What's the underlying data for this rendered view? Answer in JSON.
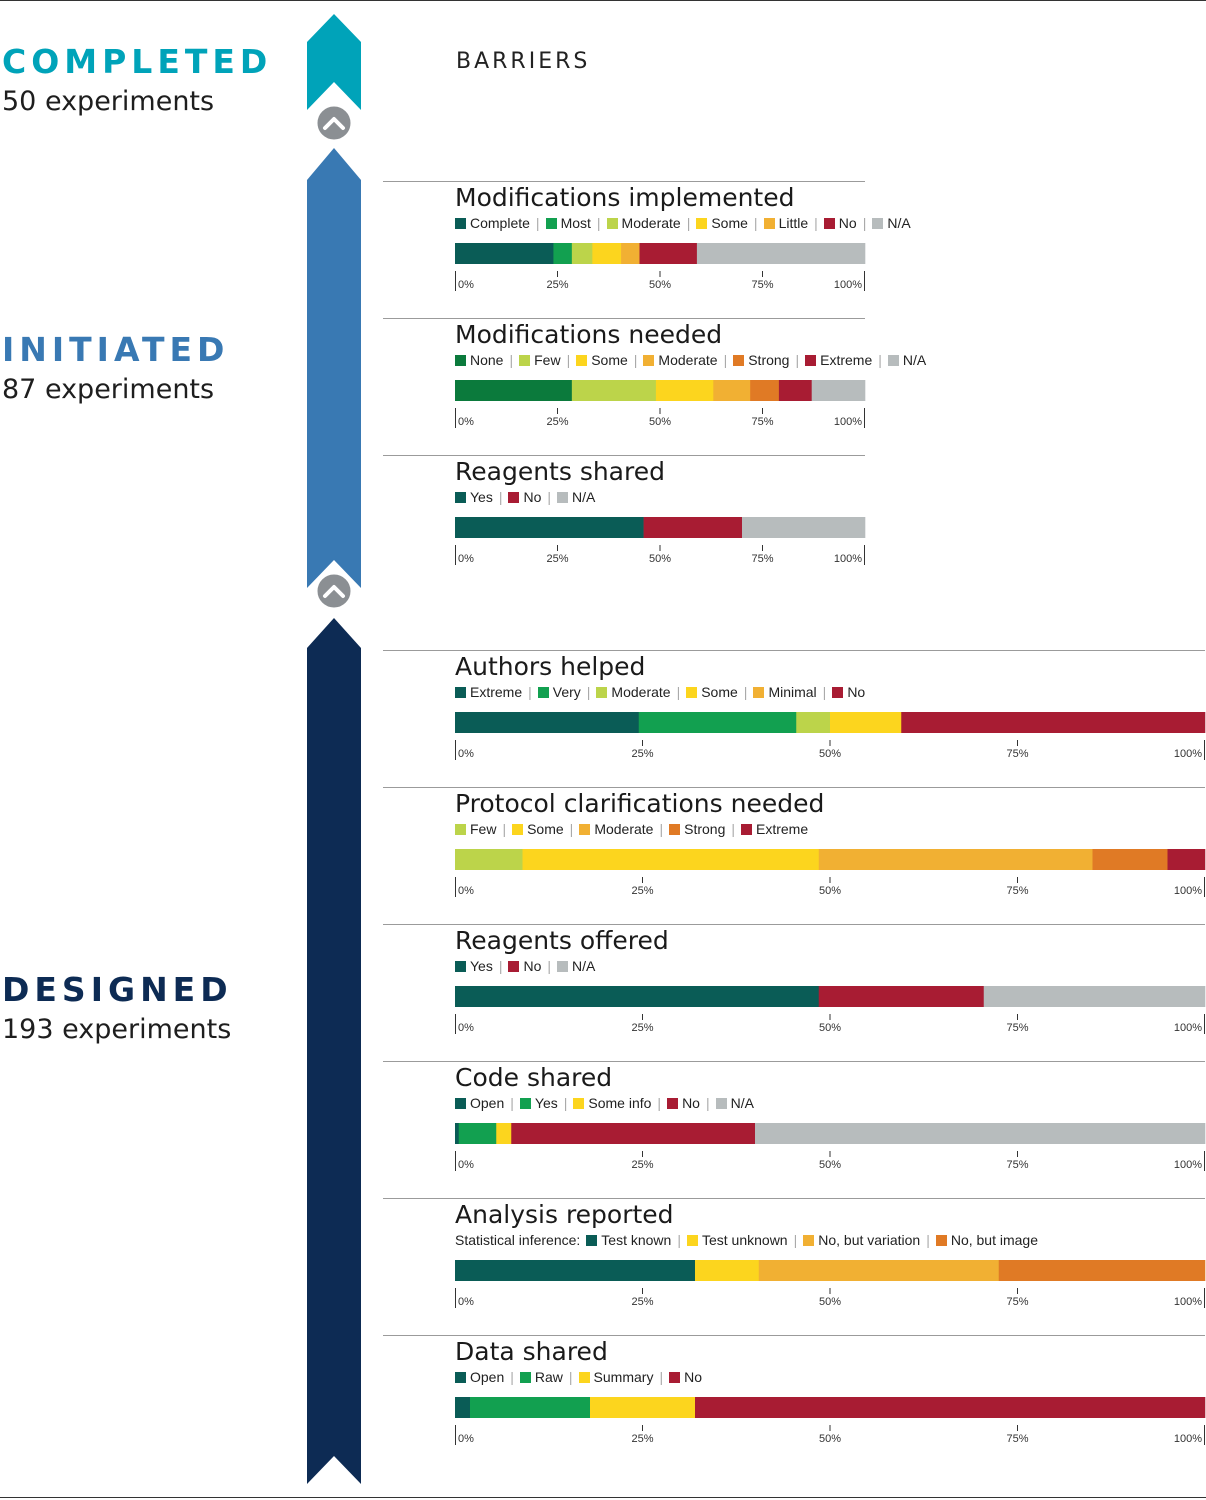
{
  "stages": [
    {
      "key": "completed",
      "title": "COMPLETED",
      "count": "50 experiments",
      "color": "#00a3b9"
    },
    {
      "key": "initiated",
      "title": "INITIATED",
      "count": "87 experiments",
      "color": "#3979b3"
    },
    {
      "key": "designed",
      "title": "DESIGNED",
      "count": "193 experiments",
      "color": "#0d2b54"
    }
  ],
  "heading": "BARRIERS",
  "connector_icon": "chevron-up-icon",
  "chart_data": [
    {
      "type": "bar",
      "stacked": true,
      "orientation": "horizontal",
      "title": "Modifications implemented",
      "stage": "completed",
      "legend_prefix": "",
      "unit": "%",
      "categories": [
        {
          "name": "Complete",
          "color": "#0a5c56",
          "value": 24
        },
        {
          "name": "Most",
          "color": "#12a050",
          "value": 4.5
        },
        {
          "name": "Moderate",
          "color": "#bcd44a",
          "value": 5
        },
        {
          "name": "Some",
          "color": "#fcd51e",
          "value": 7
        },
        {
          "name": "Little",
          "color": "#f1b033",
          "value": 4.5
        },
        {
          "name": "No",
          "color": "#a81c33",
          "value": 14
        },
        {
          "name": "N/A",
          "color": "#b7bcbd",
          "value": 41
        }
      ],
      "ticks": [
        "0%",
        "25%",
        "50%",
        "75%",
        "100%"
      ]
    },
    {
      "type": "bar",
      "stacked": true,
      "orientation": "horizontal",
      "title": "Modifications needed",
      "stage": "initiated",
      "legend_prefix": "",
      "unit": "%",
      "categories": [
        {
          "name": "None",
          "color": "#0b7a3c",
          "value": 28.5
        },
        {
          "name": "Few",
          "color": "#bcd44a",
          "value": 20.5
        },
        {
          "name": "Some",
          "color": "#fcd51e",
          "value": 14
        },
        {
          "name": "Moderate",
          "color": "#f1b033",
          "value": 9
        },
        {
          "name": "Strong",
          "color": "#e07a25",
          "value": 7
        },
        {
          "name": "Extreme",
          "color": "#a81c33",
          "value": 8
        },
        {
          "name": "N/A",
          "color": "#b7bcbd",
          "value": 13
        }
      ],
      "ticks": [
        "0%",
        "25%",
        "50%",
        "75%",
        "100%"
      ]
    },
    {
      "type": "bar",
      "stacked": true,
      "orientation": "horizontal",
      "title": "Reagents shared",
      "stage": "initiated",
      "legend_prefix": "",
      "unit": "%",
      "categories": [
        {
          "name": "Yes",
          "color": "#0a5c56",
          "value": 46
        },
        {
          "name": "No",
          "color": "#a81c33",
          "value": 24
        },
        {
          "name": "N/A",
          "color": "#b7bcbd",
          "value": 30
        }
      ],
      "ticks": [
        "0%",
        "25%",
        "50%",
        "75%",
        "100%"
      ]
    },
    {
      "type": "bar",
      "stacked": true,
      "orientation": "horizontal",
      "title": "Authors helped",
      "stage": "designed",
      "legend_prefix": "",
      "unit": "%",
      "categories": [
        {
          "name": "Extreme",
          "color": "#0a5c56",
          "value": 24.5
        },
        {
          "name": "Very",
          "color": "#12a050",
          "value": 21
        },
        {
          "name": "Moderate",
          "color": "#bcd44a",
          "value": 4.5
        },
        {
          "name": "Some",
          "color": "#fcd51e",
          "value": 9.5
        },
        {
          "name": "Minimal",
          "color": "#f1b033",
          "value": 0
        },
        {
          "name": "No",
          "color": "#a81c33",
          "value": 40.5
        }
      ],
      "ticks": [
        "0%",
        "25%",
        "50%",
        "75%",
        "100%"
      ]
    },
    {
      "type": "bar",
      "stacked": true,
      "orientation": "horizontal",
      "title": "Protocol clarifications needed",
      "stage": "designed",
      "legend_prefix": "",
      "unit": "%",
      "categories": [
        {
          "name": "Few",
          "color": "#bcd44a",
          "value": 9
        },
        {
          "name": "Some",
          "color": "#fcd51e",
          "value": 39.5
        },
        {
          "name": "Moderate",
          "color": "#f1b033",
          "value": 36.5
        },
        {
          "name": "Strong",
          "color": "#e07a25",
          "value": 10
        },
        {
          "name": "Extreme",
          "color": "#a81c33",
          "value": 5
        }
      ],
      "ticks": [
        "0%",
        "25%",
        "50%",
        "75%",
        "100%"
      ]
    },
    {
      "type": "bar",
      "stacked": true,
      "orientation": "horizontal",
      "title": "Reagents offered",
      "stage": "designed",
      "legend_prefix": "",
      "unit": "%",
      "categories": [
        {
          "name": "Yes",
          "color": "#0a5c56",
          "value": 48.5
        },
        {
          "name": "No",
          "color": "#a81c33",
          "value": 22
        },
        {
          "name": "N/A",
          "color": "#b7bcbd",
          "value": 29.5
        }
      ],
      "ticks": [
        "0%",
        "25%",
        "50%",
        "75%",
        "100%"
      ]
    },
    {
      "type": "bar",
      "stacked": true,
      "orientation": "horizontal",
      "title": "Code shared",
      "stage": "designed",
      "legend_prefix": "",
      "unit": "%",
      "categories": [
        {
          "name": "Open",
          "color": "#0a5c56",
          "value": 0.5
        },
        {
          "name": "Yes",
          "color": "#12a050",
          "value": 5
        },
        {
          "name": "Some info",
          "color": "#fcd51e",
          "value": 2
        },
        {
          "name": "No",
          "color": "#a81c33",
          "value": 32.5
        },
        {
          "name": "N/A",
          "color": "#b7bcbd",
          "value": 60
        }
      ],
      "ticks": [
        "0%",
        "25%",
        "50%",
        "75%",
        "100%"
      ]
    },
    {
      "type": "bar",
      "stacked": true,
      "orientation": "horizontal",
      "title": "Analysis reported",
      "stage": "designed",
      "legend_prefix": "Statistical inference:",
      "unit": "%",
      "categories": [
        {
          "name": "Test known",
          "color": "#0a5c56",
          "value": 32
        },
        {
          "name": "Test unknown",
          "color": "#fcd51e",
          "value": 8.5
        },
        {
          "name": "No, but variation",
          "color": "#f1b033",
          "value": 32
        },
        {
          "name": "No, but image",
          "color": "#e07a25",
          "value": 27.5
        }
      ],
      "ticks": [
        "0%",
        "25%",
        "50%",
        "75%",
        "100%"
      ]
    },
    {
      "type": "bar",
      "stacked": true,
      "orientation": "horizontal",
      "title": "Data shared",
      "stage": "designed",
      "legend_prefix": "",
      "unit": "%",
      "categories": [
        {
          "name": "Open",
          "color": "#0a5c56",
          "value": 2
        },
        {
          "name": "Raw",
          "color": "#12a050",
          "value": 16
        },
        {
          "name": "Summary",
          "color": "#fcd51e",
          "value": 14
        },
        {
          "name": "No",
          "color": "#a81c33",
          "value": 68
        }
      ],
      "ticks": [
        "0%",
        "25%",
        "50%",
        "75%",
        "100%"
      ]
    }
  ]
}
